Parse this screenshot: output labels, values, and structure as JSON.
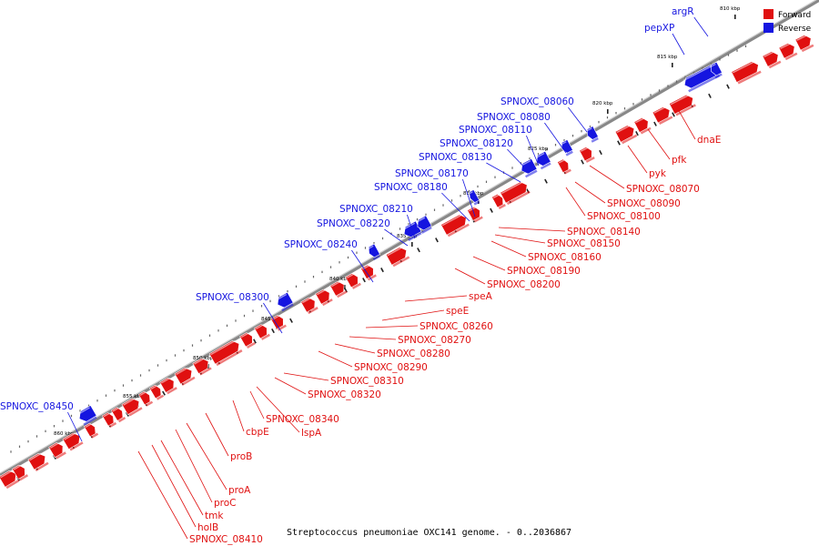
{
  "caption": "Streptococcus pneumoniae OXC141 genome. - 0..2036867",
  "legend": [
    {
      "label": "Forward",
      "color": "#e01010"
    },
    {
      "label": "Reverse",
      "color": "#1515e0"
    }
  ],
  "colors": {
    "forward": "#e01010",
    "reverse": "#1515e0",
    "backbone": "#9a9a9a"
  },
  "kbp_labels": [
    "810 kbp",
    "815 kbp",
    "820 kbp",
    "825 kbp",
    "830 kbp",
    "835 kbp",
    "840 kbp",
    "845 kbp",
    "850 kbp",
    "855 kbp",
    "860 kbp"
  ],
  "reverse_genes": [
    "argR",
    "pepXP",
    "SPNOXC_08060",
    "SPNOXC_08080",
    "SPNOXC_08110",
    "SPNOXC_08120",
    "SPNOXC_08130",
    "SPNOXC_08170",
    "SPNOXC_08180",
    "SPNOXC_08210",
    "SPNOXC_08220",
    "SPNOXC_08240",
    "SPNOXC_08300",
    "SPNOXC_08450"
  ],
  "forward_genes": [
    "dnaE",
    "pfk",
    "pyk",
    "SPNOXC_08070",
    "SPNOXC_08090",
    "SPNOXC_08100",
    "SPNOXC_08140",
    "SPNOXC_08150",
    "SPNOXC_08160",
    "SPNOXC_08190",
    "SPNOXC_08200",
    "speA",
    "speE",
    "SPNOXC_08260",
    "SPNOXC_08270",
    "SPNOXC_08280",
    "SPNOXC_08290",
    "SPNOXC_08310",
    "SPNOXC_08320",
    "SPNOXC_08340",
    "lspA",
    "cbpE",
    "proB",
    "proA",
    "proC",
    "tmk",
    "holB",
    "SPNOXC_08410"
  ]
}
